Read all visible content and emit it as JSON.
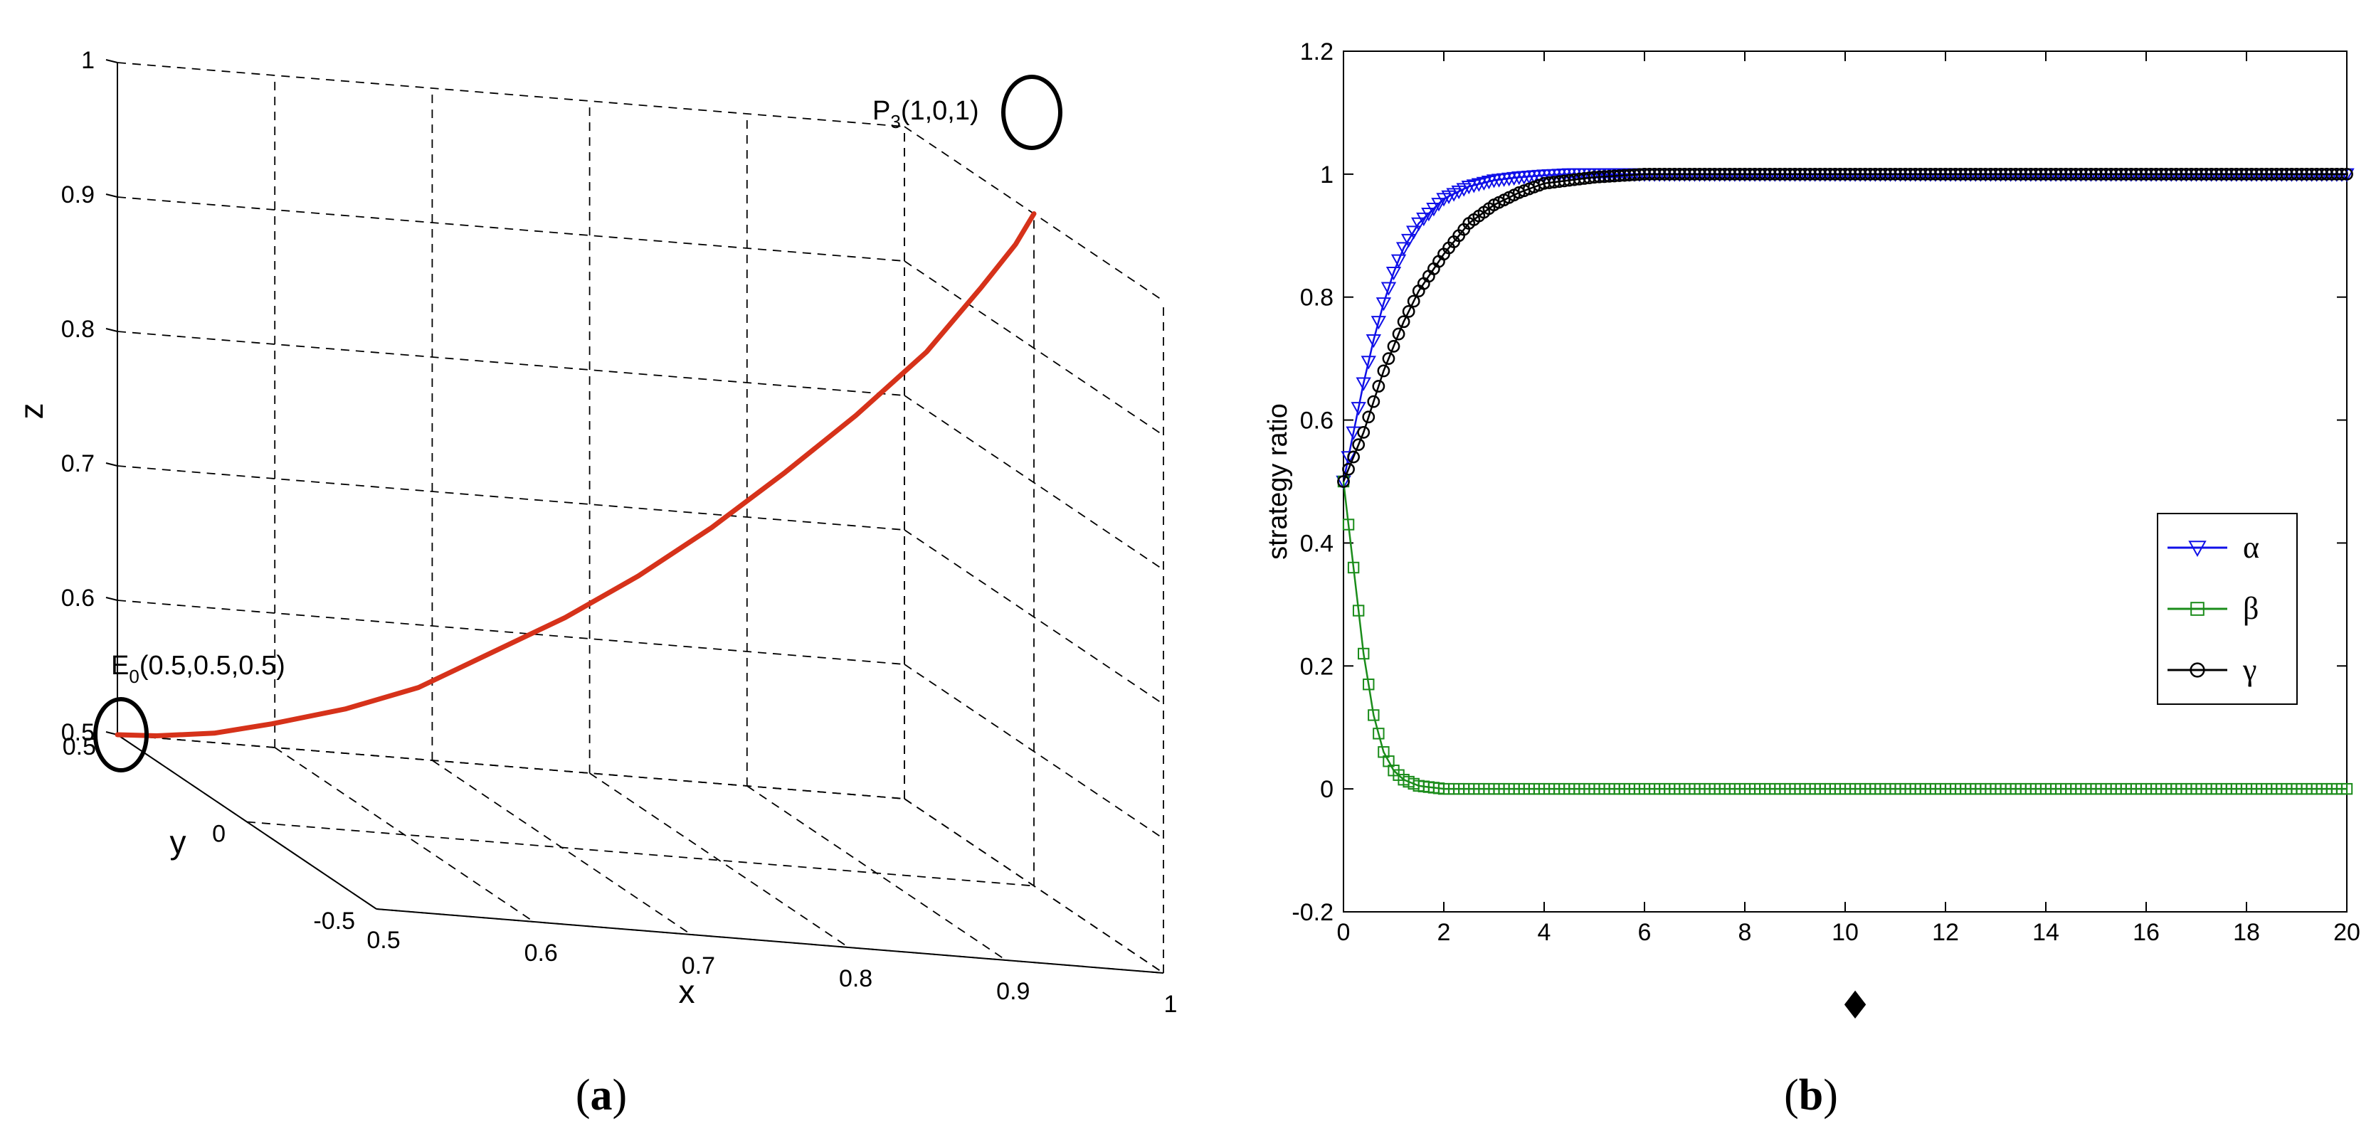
{
  "panels": {
    "a": {
      "label_open": "(",
      "label_letter": "a",
      "label_close": ")",
      "chart_data": {
        "type": "line",
        "projection": "3d",
        "xlabel": "x",
        "ylabel": "y",
        "zlabel": "z",
        "x_ticks": [
          "0.5",
          "0.6",
          "0.7",
          "0.8",
          "0.9",
          "1"
        ],
        "y_ticks": [
          "-0.5",
          "0",
          "0.5"
        ],
        "z_ticks": [
          "0.5",
          "0.6",
          "0.7",
          "0.8",
          "0.9",
          "1"
        ],
        "xlim": [
          0.5,
          1
        ],
        "ylim": [
          -0.5,
          0.5
        ],
        "zlim": [
          0.5,
          1
        ],
        "grid": true,
        "series_color": "#d6321a",
        "series": [
          {
            "x": [
              0.5,
              0.52,
              0.55,
              0.58,
              0.62,
              0.66,
              0.7,
              0.74,
              0.78,
              0.82,
              0.86,
              0.9,
              0.94,
              0.97,
              0.99,
              1.0
            ],
            "y": [
              0.5,
              0.47,
              0.43,
              0.39,
              0.35,
              0.31,
              0.27,
              0.23,
              0.19,
              0.15,
              0.11,
              0.08,
              0.05,
              0.02,
              0.01,
              0.0
            ],
            "z": [
              0.5,
              0.505,
              0.515,
              0.53,
              0.55,
              0.575,
              0.61,
              0.645,
              0.685,
              0.73,
              0.78,
              0.83,
              0.885,
              0.94,
              0.975,
              1.0
            ]
          }
        ],
        "annotations": {
          "start": {
            "main": "E",
            "sub": "0",
            "rest": "(0.5,0.5,0.5)"
          },
          "end": {
            "main": "P",
            "sub": "3",
            "rest": "(1,0,1)"
          }
        }
      }
    },
    "b": {
      "label_open": "(",
      "label_letter": "b",
      "label_close": ")",
      "chart_data": {
        "type": "line",
        "ylabel": "strategy ratio",
        "xlabel": "",
        "xlim": [
          0,
          20
        ],
        "ylim": [
          -0.2,
          1.2
        ],
        "x_ticks": [
          "0",
          "2",
          "4",
          "6",
          "8",
          "10",
          "12",
          "14",
          "16",
          "18",
          "20"
        ],
        "y_ticks": [
          "-0.2",
          "0",
          "0.2",
          "0.4",
          "0.6",
          "0.8",
          "1",
          "1.2"
        ],
        "grid": false,
        "legend_position": "right",
        "x": [
          0,
          0.2,
          0.4,
          0.6,
          0.8,
          1.0,
          1.2,
          1.5,
          2.0,
          2.5,
          3.0,
          3.5,
          4.0,
          4.5,
          5.0,
          6.0,
          7.0,
          8.0,
          10.0,
          12.0,
          14.0,
          16.0,
          18.0,
          20.0
        ],
        "series": [
          {
            "name": "α",
            "color": "#1010e8",
            "marker": "triangle-down",
            "values": [
              0.5,
              0.58,
              0.66,
              0.73,
              0.79,
              0.84,
              0.88,
              0.92,
              0.96,
              0.98,
              0.99,
              0.995,
              0.998,
              1.0,
              1.0,
              1.0,
              1.0,
              1.0,
              1.0,
              1.0,
              1.0,
              1.0,
              1.0,
              1.0
            ]
          },
          {
            "name": "β",
            "color": "#1a8c1a",
            "marker": "square",
            "values": [
              0.5,
              0.36,
              0.22,
              0.12,
              0.06,
              0.03,
              0.015,
              0.005,
              0.0,
              0.0,
              0.0,
              0.0,
              0.0,
              0.0,
              0.0,
              0.0,
              0.0,
              0.0,
              0.0,
              0.0,
              0.0,
              0.0,
              0.0,
              0.0
            ]
          },
          {
            "name": "γ",
            "color": "#000000",
            "marker": "circle",
            "values": [
              0.5,
              0.54,
              0.58,
              0.63,
              0.68,
              0.72,
              0.76,
              0.81,
              0.87,
              0.92,
              0.95,
              0.97,
              0.985,
              0.99,
              0.995,
              1.0,
              1.0,
              1.0,
              1.0,
              1.0,
              1.0,
              1.0,
              1.0,
              1.0
            ]
          }
        ],
        "extra_mark": {
          "symbol": "♦",
          "x": 10.2
        }
      }
    }
  }
}
